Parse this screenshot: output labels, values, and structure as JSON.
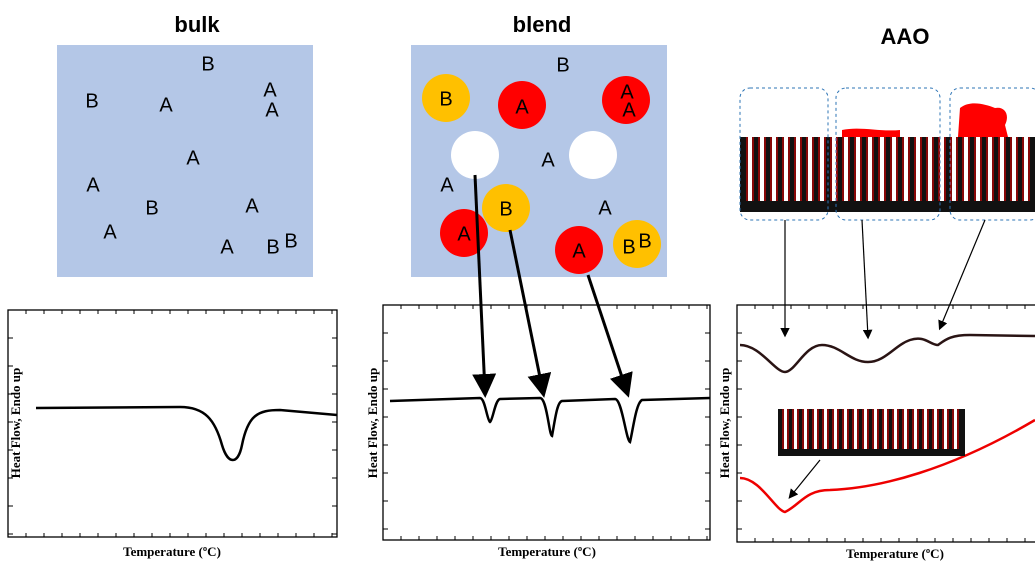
{
  "panels": [
    {
      "title": "bulk",
      "letters": [
        "B",
        "B",
        "A",
        "A",
        "A",
        "A",
        "A",
        "B",
        "A",
        "A",
        "A",
        "B",
        "B"
      ],
      "chart": {
        "y_label": "Heat Flow, Endo up",
        "x_label": "Temperature (ºC)"
      }
    },
    {
      "title": "blend",
      "letters": [
        "B",
        "B",
        "A",
        "A",
        "A",
        "A",
        "A",
        "B",
        "A",
        "A",
        "A",
        "B",
        "B"
      ],
      "chart": {
        "y_label": "Heat Flow, Endo up",
        "x_label": "Temperature (ºC)"
      }
    },
    {
      "title": "AAO",
      "chart": {
        "y_label": "Heat Flow, Endo up",
        "x_label": "Temperature (ºC)"
      }
    }
  ]
}
